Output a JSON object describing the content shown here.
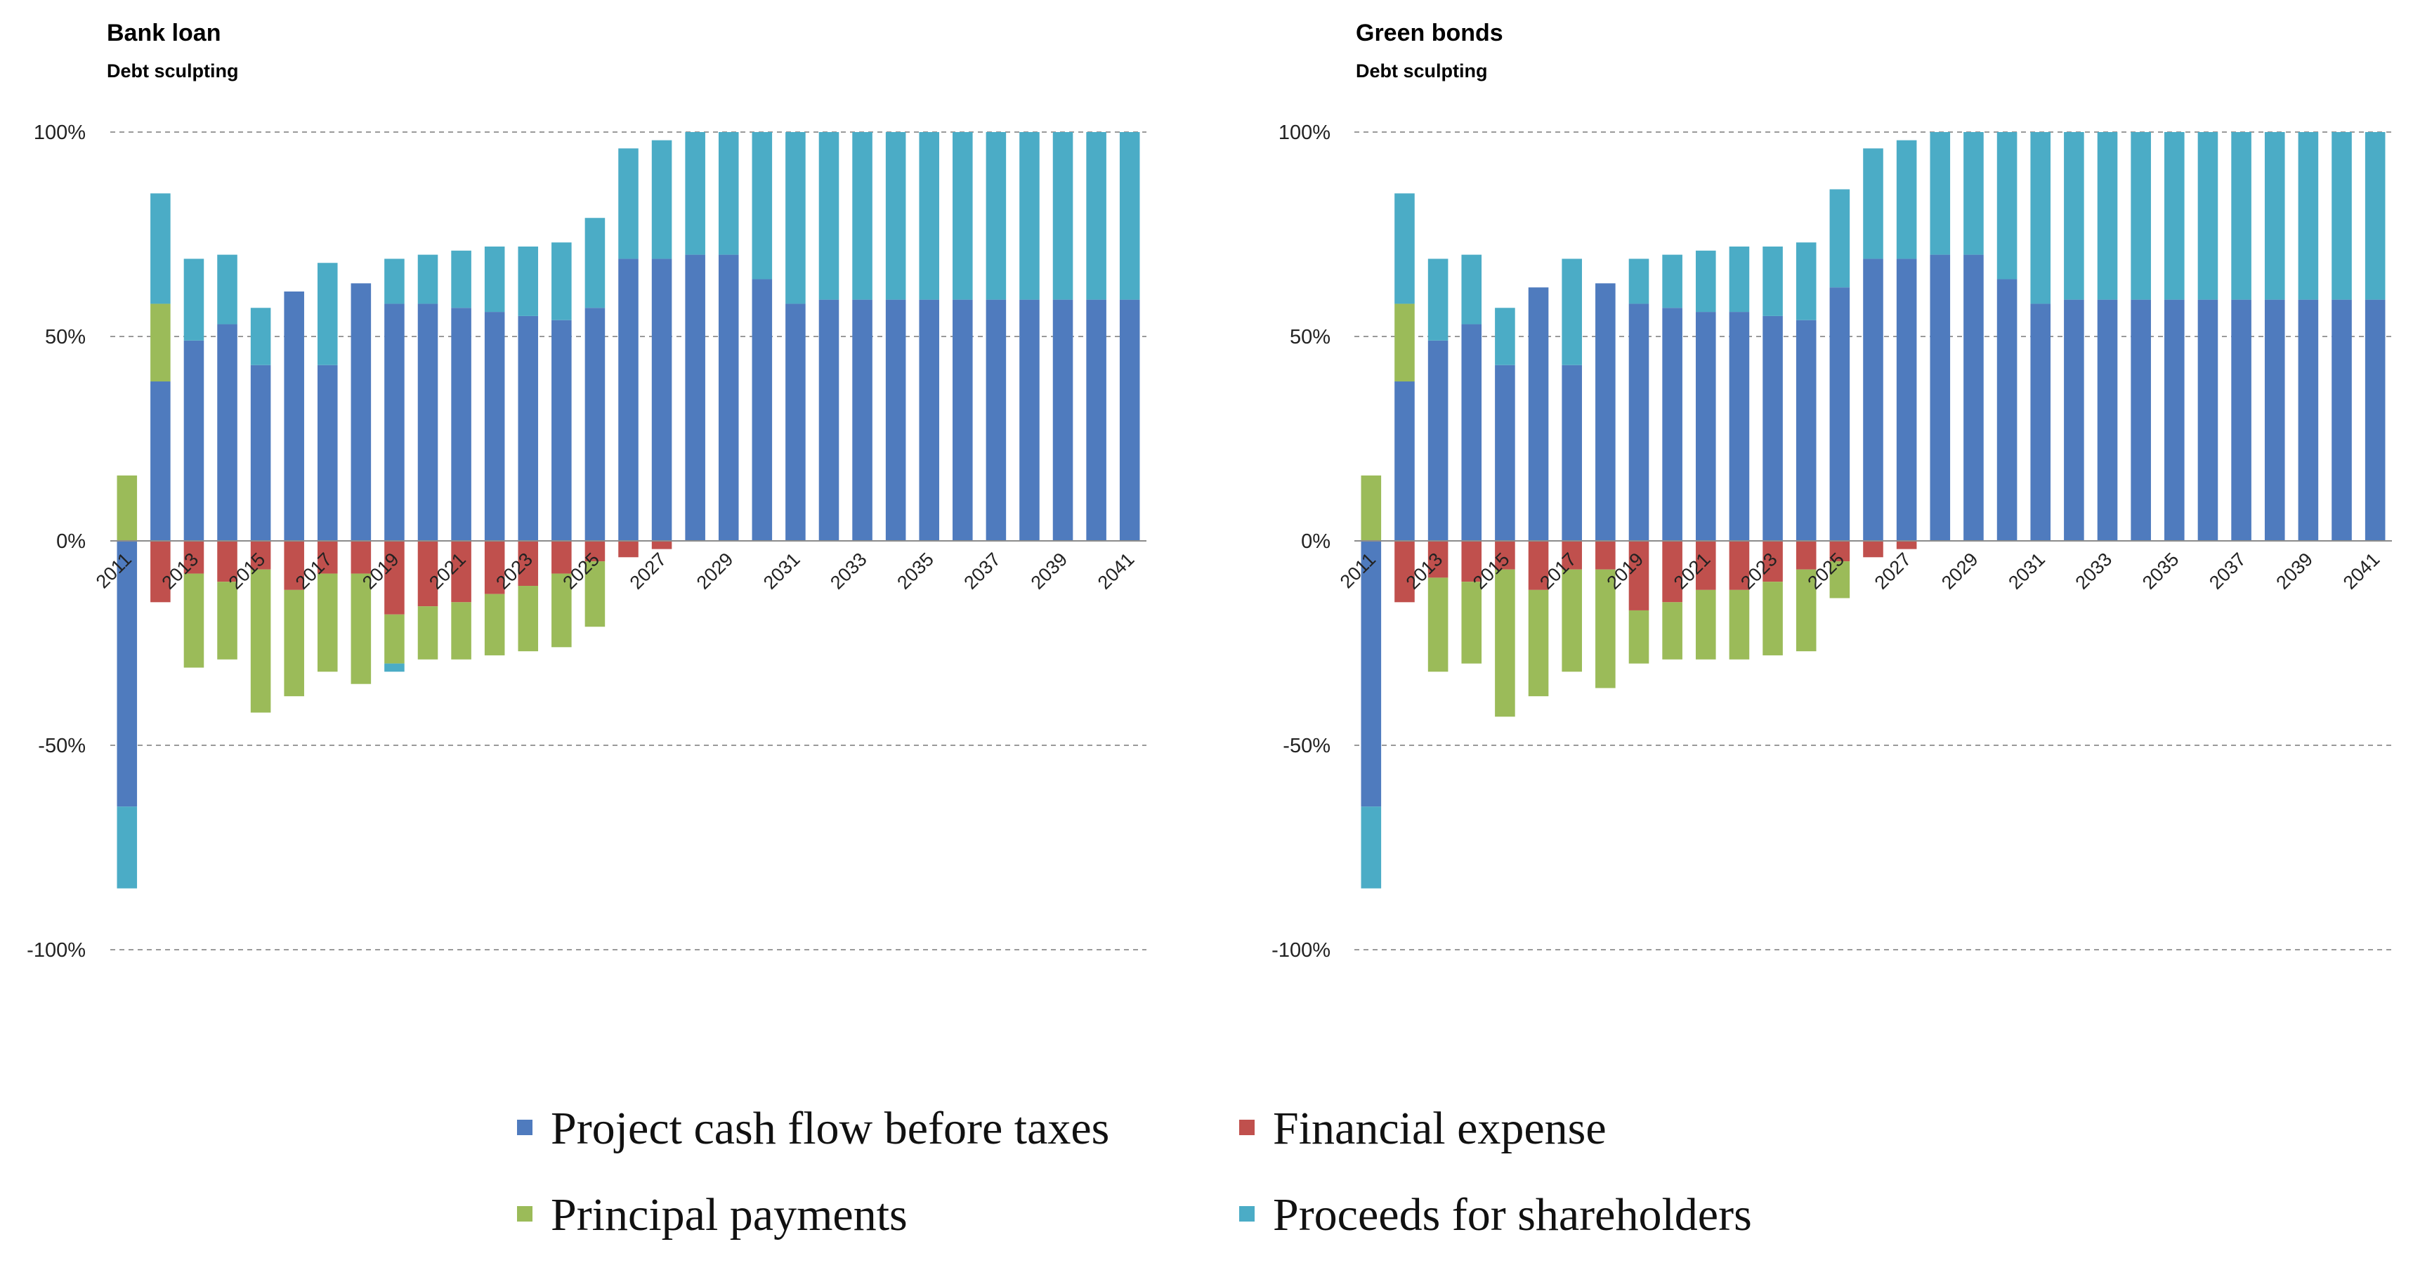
{
  "chart_data": [
    {
      "type": "bar",
      "stacked": true,
      "title": "Bank loan",
      "subtitle": "Debt sculpting",
      "y_ticks": [
        "100%",
        "50%",
        "0%",
        "-50%",
        "-100%"
      ],
      "ylim": [
        -100,
        100
      ],
      "grid": true,
      "categories": [
        "2011",
        "2012",
        "2013",
        "2014",
        "2015",
        "2016",
        "2017",
        "2018",
        "2019",
        "2020",
        "2021",
        "2022",
        "2023",
        "2024",
        "2025",
        "2026",
        "2027",
        "2028",
        "2029",
        "2030",
        "2031",
        "2032",
        "2033",
        "2034",
        "2035",
        "2036",
        "2037",
        "2038",
        "2039",
        "2040",
        "2041"
      ],
      "x_tick_labels": [
        "2011",
        "",
        "2013",
        "",
        "2015",
        "",
        "2017",
        "",
        "2019",
        "",
        "2021",
        "",
        "2023",
        "",
        "2025",
        "",
        "2027",
        "",
        "2029",
        "",
        "2031",
        "",
        "2033",
        "",
        "2035",
        "",
        "2037",
        "",
        "2039",
        "",
        "2041"
      ],
      "series": [
        {
          "name": "Project cash flow before taxes",
          "positive": [
            0,
            39,
            49,
            53,
            43,
            61,
            43,
            63,
            58,
            58,
            57,
            56,
            55,
            54,
            57,
            69,
            69,
            70,
            70,
            64,
            58,
            59,
            59,
            59,
            59,
            59,
            59,
            59,
            59,
            59,
            59
          ],
          "negative": [
            -65,
            0,
            0,
            0,
            0,
            0,
            0,
            0,
            0,
            0,
            0,
            0,
            0,
            0,
            0,
            0,
            0,
            0,
            0,
            0,
            0,
            0,
            0,
            0,
            0,
            0,
            0,
            0,
            0,
            0,
            0
          ]
        },
        {
          "name": "Financial expense",
          "positive": [
            0,
            0,
            0,
            0,
            0,
            0,
            0,
            0,
            0,
            0,
            0,
            0,
            0,
            0,
            0,
            0,
            0,
            0,
            0,
            0,
            0,
            0,
            0,
            0,
            0,
            0,
            0,
            0,
            0,
            0,
            0
          ],
          "negative": [
            0,
            -15,
            -8,
            -10,
            -7,
            -12,
            -8,
            -8,
            -18,
            -16,
            -15,
            -13,
            -11,
            -8,
            -5,
            -4,
            -2,
            0,
            0,
            0,
            0,
            0,
            0,
            0,
            0,
            0,
            0,
            0,
            0,
            0,
            0
          ]
        },
        {
          "name": "Principal payments",
          "positive": [
            16,
            19,
            0,
            0,
            0,
            0,
            0,
            0,
            0,
            0,
            0,
            0,
            0,
            0,
            0,
            0,
            0,
            0,
            0,
            0,
            0,
            0,
            0,
            0,
            0,
            0,
            0,
            0,
            0,
            0,
            0
          ],
          "negative": [
            0,
            0,
            -23,
            -19,
            -35,
            -26,
            -24,
            -27,
            -12,
            -13,
            -14,
            -15,
            -16,
            -18,
            -16,
            0,
            0,
            0,
            0,
            0,
            0,
            0,
            0,
            0,
            0,
            0,
            0,
            0,
            0,
            0,
            0
          ]
        },
        {
          "name": "Proceeds for shareholders",
          "positive": [
            0,
            27,
            20,
            17,
            14,
            0,
            25,
            0,
            11,
            12,
            14,
            16,
            17,
            19,
            22,
            27,
            29,
            30,
            30,
            36,
            42,
            41,
            41,
            41,
            41,
            41,
            41,
            41,
            41,
            41,
            41
          ],
          "negative": [
            -20,
            0,
            0,
            0,
            0,
            0,
            0,
            0,
            -2,
            0,
            0,
            0,
            0,
            0,
            0,
            0,
            0,
            0,
            0,
            0,
            0,
            0,
            0,
            0,
            0,
            0,
            0,
            0,
            0,
            0,
            0
          ]
        }
      ]
    },
    {
      "type": "bar",
      "stacked": true,
      "title": "Green bonds",
      "subtitle": "Debt sculpting",
      "y_ticks": [
        "100%",
        "50%",
        "0%",
        "-50%",
        "-100%"
      ],
      "ylim": [
        -100,
        100
      ],
      "grid": true,
      "categories": [
        "2011",
        "2012",
        "2013",
        "2014",
        "2015",
        "2016",
        "2017",
        "2018",
        "2019",
        "2020",
        "2021",
        "2022",
        "2023",
        "2024",
        "2025",
        "2026",
        "2027",
        "2028",
        "2029",
        "2030",
        "2031",
        "2032",
        "2033",
        "2034",
        "2035",
        "2036",
        "2037",
        "2038",
        "2039",
        "2040",
        "2041"
      ],
      "x_tick_labels": [
        "2011",
        "",
        "2013",
        "",
        "2015",
        "",
        "2017",
        "",
        "2019",
        "",
        "2021",
        "",
        "2023",
        "",
        "2025",
        "",
        "2027",
        "",
        "2029",
        "",
        "2031",
        "",
        "2033",
        "",
        "2035",
        "",
        "2037",
        "",
        "2039",
        "",
        "2041"
      ],
      "series": [
        {
          "name": "Project cash flow before taxes",
          "positive": [
            0,
            39,
            49,
            53,
            43,
            62,
            43,
            63,
            58,
            57,
            56,
            56,
            55,
            54,
            62,
            69,
            69,
            70,
            70,
            64,
            58,
            59,
            59,
            59,
            59,
            59,
            59,
            59,
            59,
            59,
            59
          ],
          "negative": [
            -65,
            0,
            0,
            0,
            0,
            0,
            0,
            0,
            0,
            0,
            0,
            0,
            0,
            0,
            0,
            0,
            0,
            0,
            0,
            0,
            0,
            0,
            0,
            0,
            0,
            0,
            0,
            0,
            0,
            0,
            0
          ]
        },
        {
          "name": "Financial expense",
          "positive": [
            0,
            0,
            0,
            0,
            0,
            0,
            0,
            0,
            0,
            0,
            0,
            0,
            0,
            0,
            0,
            0,
            0,
            0,
            0,
            0,
            0,
            0,
            0,
            0,
            0,
            0,
            0,
            0,
            0,
            0,
            0
          ],
          "negative": [
            0,
            -15,
            -9,
            -10,
            -7,
            -12,
            -7,
            -7,
            -17,
            -15,
            -12,
            -12,
            -10,
            -7,
            -5,
            -4,
            -2,
            0,
            0,
            0,
            0,
            0,
            0,
            0,
            0,
            0,
            0,
            0,
            0,
            0,
            0
          ]
        },
        {
          "name": "Principal payments",
          "positive": [
            16,
            19,
            0,
            0,
            0,
            0,
            0,
            0,
            0,
            0,
            0,
            0,
            0,
            0,
            0,
            0,
            0,
            0,
            0,
            0,
            0,
            0,
            0,
            0,
            0,
            0,
            0,
            0,
            0,
            0,
            0
          ],
          "negative": [
            0,
            0,
            -23,
            -20,
            -36,
            -26,
            -25,
            -29,
            -13,
            -14,
            -17,
            -17,
            -18,
            -20,
            -9,
            0,
            0,
            0,
            0,
            0,
            0,
            0,
            0,
            0,
            0,
            0,
            0,
            0,
            0,
            0,
            0
          ]
        },
        {
          "name": "Proceeds for shareholders",
          "positive": [
            0,
            27,
            20,
            17,
            14,
            0,
            26,
            0,
            11,
            13,
            15,
            16,
            17,
            19,
            24,
            27,
            29,
            30,
            30,
            36,
            42,
            41,
            41,
            41,
            41,
            41,
            41,
            41,
            41,
            41,
            41
          ],
          "negative": [
            -20,
            0,
            0,
            0,
            0,
            0,
            0,
            0,
            0,
            0,
            0,
            0,
            0,
            0,
            0,
            0,
            0,
            0,
            0,
            0,
            0,
            0,
            0,
            0,
            0,
            0,
            0,
            0,
            0,
            0,
            0
          ]
        }
      ]
    }
  ],
  "legend": {
    "items": [
      {
        "label": "Project cash flow before taxes",
        "color": "#4f7bbe"
      },
      {
        "label": "Financial expense",
        "color": "#c0504d"
      },
      {
        "label": "Principal payments",
        "color": "#9bbb59"
      },
      {
        "label": "Proceeds for shareholders",
        "color": "#4bacc6"
      }
    ]
  }
}
